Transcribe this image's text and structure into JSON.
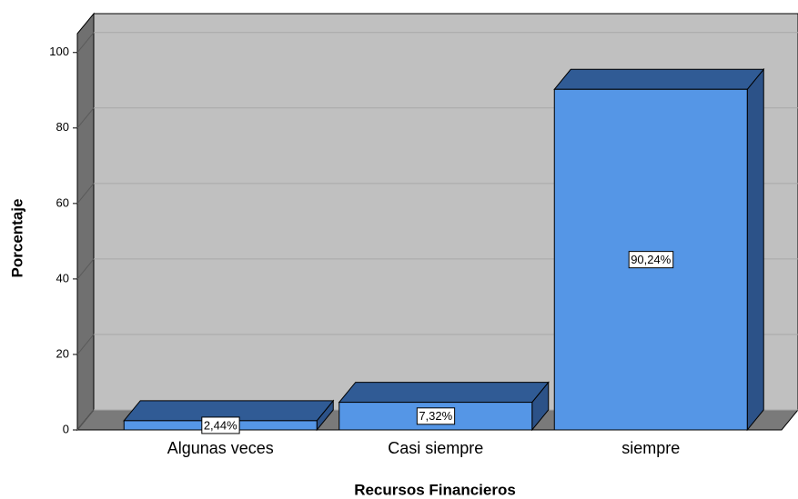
{
  "chart_data": {
    "type": "bar3d",
    "x_label": "Recursos Financieros",
    "y_label": "Porcentaje",
    "categories": [
      "Algunas veces",
      "Casi siempre",
      "siempre"
    ],
    "values": [
      2.44,
      7.32,
      90.24
    ],
    "value_labels": [
      "2,44%",
      "7,32%",
      "90,24%"
    ],
    "color": "#5596e6",
    "ylim": [
      0,
      105
    ],
    "yticks": [
      0,
      20,
      40,
      60,
      80,
      100
    ],
    "grid": true
  }
}
